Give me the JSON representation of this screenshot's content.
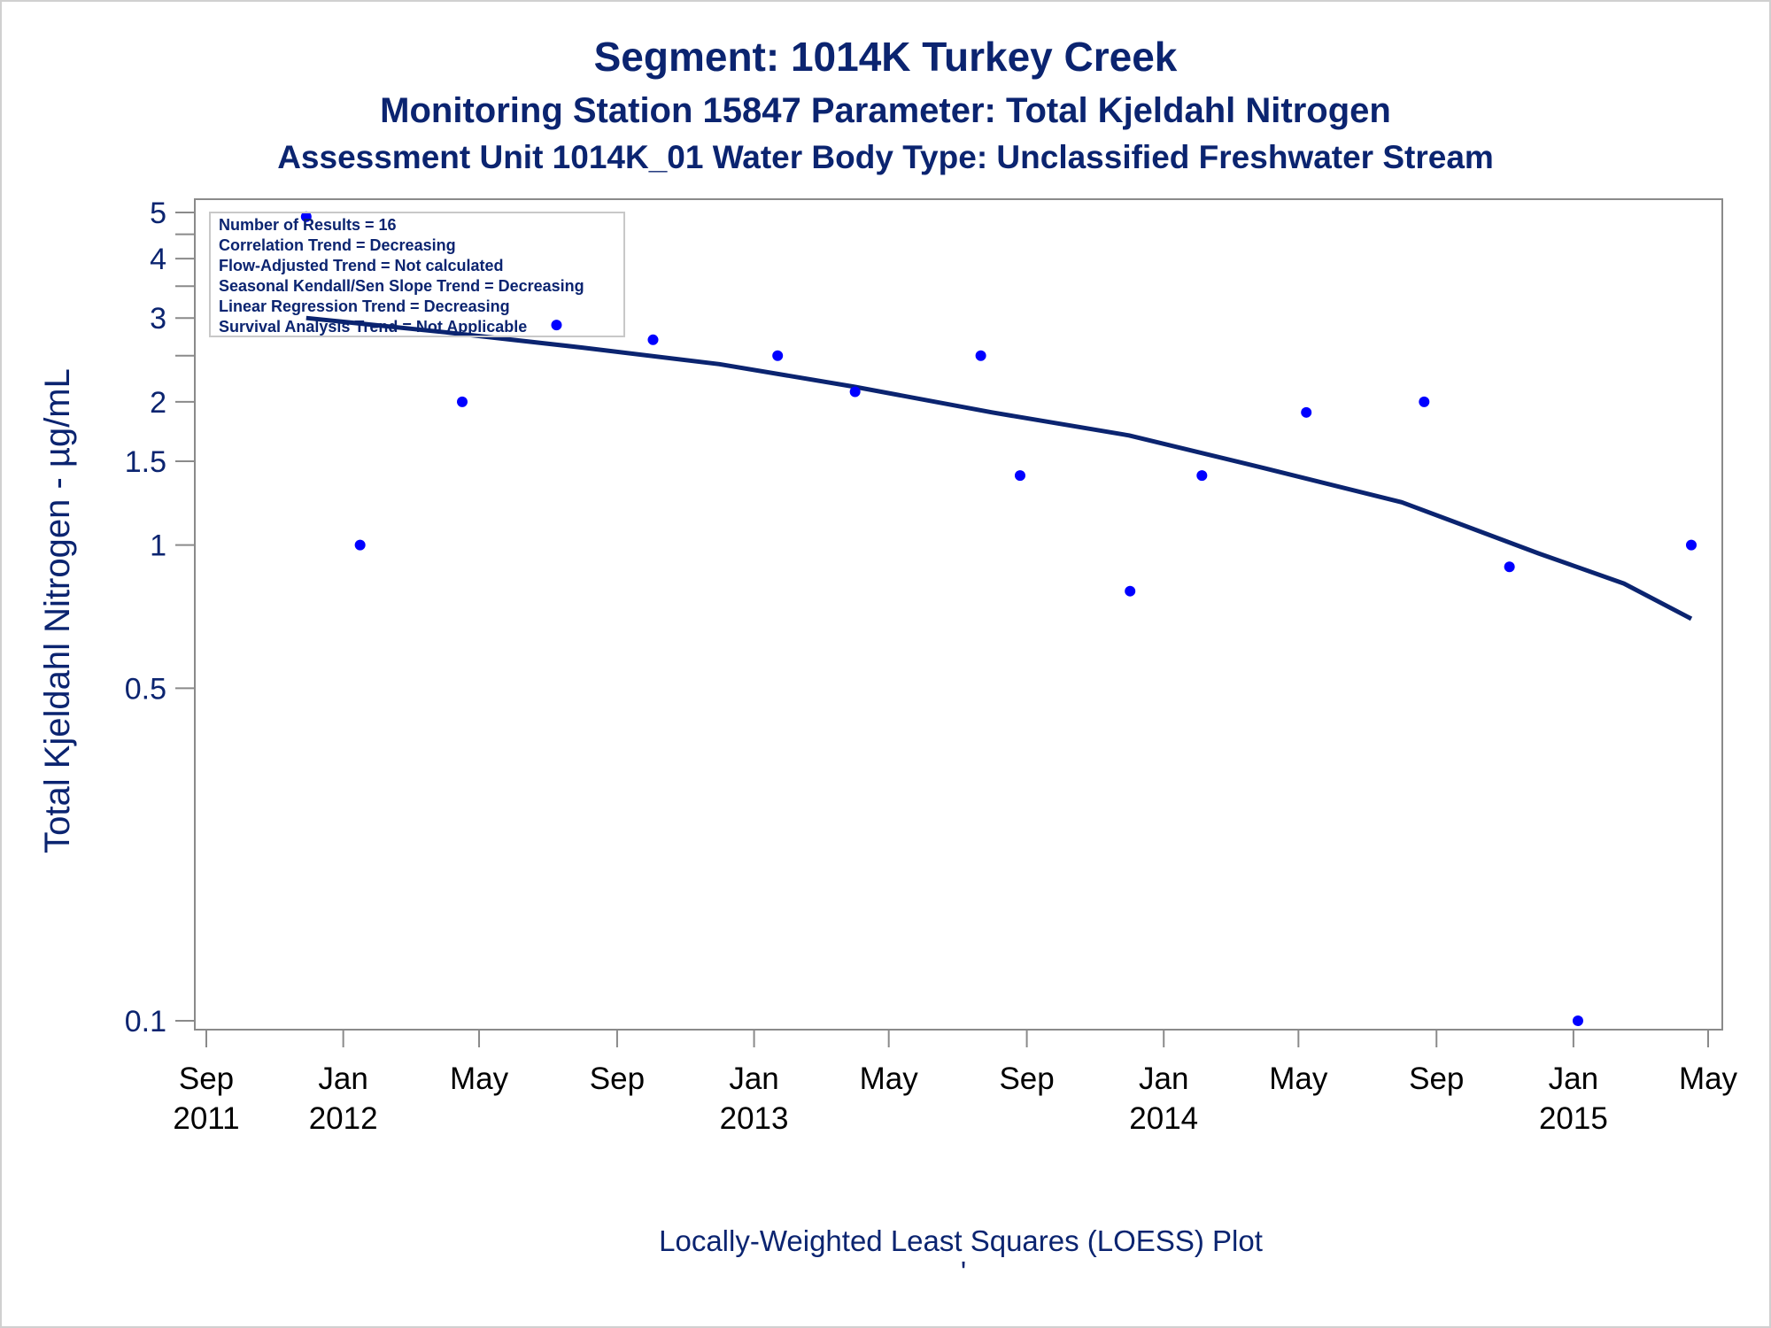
{
  "chart_data": {
    "type": "scatter",
    "title": "Segment: 1014K  Turkey Creek",
    "subtitle": "Monitoring Station 15847 Parameter: Total Kjeldahl Nitrogen",
    "subtitle2": "Assessment Unit 1014K_01   Water Body Type: Unclassified Freshwater Stream",
    "ylabel": "Total Kjeldahl Nitrogen -  µg/mL",
    "footnote": "Locally-Weighted Least Squares (LOESS) Plot",
    "footnote_mark": "'",
    "yscale": "log",
    "ylim": [
      0.1,
      5
    ],
    "xlim": [
      "2011-09-01",
      "2015-05-01"
    ],
    "yticks": [
      {
        "value": 0.1,
        "label": "0.1"
      },
      {
        "value": 0.5,
        "label": "0.5"
      },
      {
        "value": 1,
        "label": "1"
      },
      {
        "value": 1.5,
        "label": "1.5"
      },
      {
        "value": 2,
        "label": "2"
      },
      {
        "value": 3,
        "label": "3"
      },
      {
        "value": 4,
        "label": "4"
      },
      {
        "value": 5,
        "label": "5"
      }
    ],
    "yminor_ticks": [
      2.5,
      3.5,
      4.5
    ],
    "xticks": [
      {
        "date": "2011-09-01",
        "label": "Sep",
        "year": "2011"
      },
      {
        "date": "2012-01-01",
        "label": "Jan",
        "year": "2012"
      },
      {
        "date": "2012-05-01",
        "label": "May",
        "year": ""
      },
      {
        "date": "2012-09-01",
        "label": "Sep",
        "year": ""
      },
      {
        "date": "2013-01-01",
        "label": "Jan",
        "year": "2013"
      },
      {
        "date": "2013-05-01",
        "label": "May",
        "year": ""
      },
      {
        "date": "2013-09-01",
        "label": "Sep",
        "year": ""
      },
      {
        "date": "2014-01-01",
        "label": "Jan",
        "year": "2014"
      },
      {
        "date": "2014-05-01",
        "label": "May",
        "year": ""
      },
      {
        "date": "2014-09-01",
        "label": "Sep",
        "year": ""
      },
      {
        "date": "2015-01-01",
        "label": "Jan",
        "year": "2015"
      },
      {
        "date": "2015-05-01",
        "label": "May",
        "year": ""
      }
    ],
    "points": [
      {
        "x": "2011-11-29",
        "y": 4.9
      },
      {
        "x": "2012-01-16",
        "y": 1.0
      },
      {
        "x": "2012-04-16",
        "y": 2.0
      },
      {
        "x": "2012-07-09",
        "y": 2.9
      },
      {
        "x": "2012-10-03",
        "y": 2.7
      },
      {
        "x": "2013-01-22",
        "y": 2.5
      },
      {
        "x": "2013-04-01",
        "y": 2.1
      },
      {
        "x": "2013-07-22",
        "y": 2.5
      },
      {
        "x": "2013-08-26",
        "y": 1.4
      },
      {
        "x": "2013-12-02",
        "y": 0.8
      },
      {
        "x": "2014-02-04",
        "y": 1.4
      },
      {
        "x": "2014-05-08",
        "y": 1.9
      },
      {
        "x": "2014-08-21",
        "y": 2.0
      },
      {
        "x": "2014-11-05",
        "y": 0.9
      },
      {
        "x": "2015-01-05",
        "y": 0.1
      },
      {
        "x": "2015-04-16",
        "y": 1.0
      }
    ],
    "loess": [
      {
        "x": "2011-11-29",
        "y": 3.0
      },
      {
        "x": "2012-04-01",
        "y": 2.8
      },
      {
        "x": "2012-08-01",
        "y": 2.6
      },
      {
        "x": "2012-12-01",
        "y": 2.4
      },
      {
        "x": "2013-04-01",
        "y": 2.15
      },
      {
        "x": "2013-08-01",
        "y": 1.9
      },
      {
        "x": "2013-12-01",
        "y": 1.7
      },
      {
        "x": "2014-04-01",
        "y": 1.45
      },
      {
        "x": "2014-08-01",
        "y": 1.23
      },
      {
        "x": "2014-12-01",
        "y": 0.96
      },
      {
        "x": "2015-02-15",
        "y": 0.83
      },
      {
        "x": "2015-04-16",
        "y": 0.7
      }
    ],
    "marker_color": "#0000ff",
    "line_color": "#0b2470",
    "legend_position": "top-left",
    "legend": [
      "Number of Results = 16",
      "Correlation Trend = Decreasing",
      "Flow-Adjusted Trend = Not calculated",
      "Seasonal Kendall/Sen Slope Trend = Decreasing",
      "Linear Regression Trend = Decreasing",
      "Survival Analysis Trend = Not Applicable"
    ]
  }
}
